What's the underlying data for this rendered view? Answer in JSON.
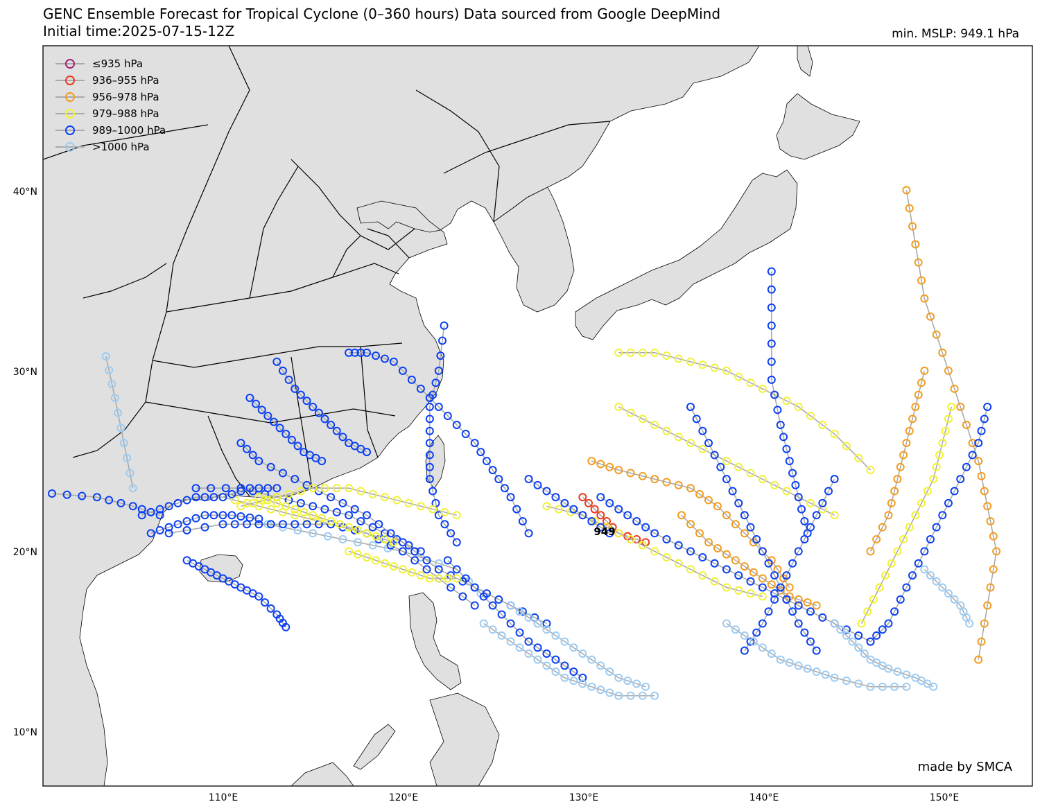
{
  "header": {
    "title_line1": "GENC Ensemble Forecast for Tropical Cyclone (0–360 hours) Data sourced from Google DeepMind",
    "title_line2": "Initial time:2025-07-15-12Z",
    "min_mslp": "min. MSLP: 949.1 hPa"
  },
  "map": {
    "lon_range": [
      100,
      155
    ],
    "lat_range": [
      7,
      48
    ],
    "lat_ticks": [
      "40°N",
      "30°N",
      "20°N",
      "10°N"
    ],
    "lon_ticks": [
      "110°E",
      "120°E",
      "130°E",
      "140°E",
      "150°E"
    ],
    "colors": {
      "land": "#e0e0e0",
      "ocean": "#ffffff",
      "track_line": "#aaaaaa"
    }
  },
  "legend": {
    "items": [
      {
        "label": "≤935 hPa",
        "color": "#a0206e"
      },
      {
        "label": "936–955 hPa",
        "color": "#e8391d"
      },
      {
        "label": "956–978 hPa",
        "color": "#f39c1f"
      },
      {
        "label": "979–988 hPa",
        "color": "#f2f230"
      },
      {
        "label": "989–1000 hPa",
        "color": "#0a3ff5"
      },
      {
        "label": ">1000 hPa",
        "color": "#9ccbf2"
      }
    ]
  },
  "annotation": {
    "min_label": "949"
  },
  "credit": "made by SMCA",
  "tracks": [
    {
      "cls": 5,
      "pts": [
        [
          112.5,
          21.5
        ],
        [
          115,
          21
        ],
        [
          117.5,
          20.5
        ],
        [
          120,
          20
        ],
        [
          123,
          19
        ],
        [
          125,
          17
        ]
      ]
    },
    {
      "cls": 4,
      "pts": [
        [
          122.5,
          19.5
        ],
        [
          124,
          18
        ],
        [
          125.5,
          16.5
        ],
        [
          127,
          15
        ],
        [
          128.5,
          14
        ],
        [
          130,
          13
        ]
      ]
    },
    {
      "cls": 5,
      "pts": [
        [
          124.5,
          16
        ],
        [
          126,
          15
        ],
        [
          127.5,
          14
        ],
        [
          129,
          13
        ],
        [
          130.5,
          12.5
        ],
        [
          132,
          12
        ],
        [
          134,
          12
        ]
      ]
    },
    {
      "cls": 4,
      "pts": [
        [
          121,
          20
        ],
        [
          119,
          21
        ],
        [
          117,
          22
        ],
        [
          115,
          22.5
        ],
        [
          113,
          23
        ],
        [
          111,
          23.5
        ],
        [
          108.5,
          23.5
        ]
      ]
    },
    {
      "cls": 3,
      "pts": [
        [
          118,
          21
        ],
        [
          116,
          21.5
        ],
        [
          114,
          22
        ],
        [
          112,
          22.5
        ],
        [
          110,
          23
        ]
      ]
    },
    {
      "cls": 4,
      "pts": [
        [
          124,
          17
        ],
        [
          122,
          18.5
        ],
        [
          120,
          20
        ],
        [
          118,
          21
        ],
        [
          116,
          21.5
        ],
        [
          114,
          21.5
        ],
        [
          112,
          21.5
        ],
        [
          110,
          21.5
        ],
        [
          107,
          21
        ]
      ]
    },
    {
      "cls": 4,
      "pts": [
        [
          128,
          16
        ],
        [
          126,
          17
        ],
        [
          124,
          18
        ],
        [
          122,
          19
        ],
        [
          120,
          20.5
        ],
        [
          118,
          22
        ],
        [
          116,
          23
        ],
        [
          114,
          24
        ],
        [
          112,
          25
        ],
        [
          111,
          26
        ]
      ]
    },
    {
      "cls": 4,
      "pts": [
        [
          123,
          20.5
        ],
        [
          122,
          22
        ],
        [
          121.5,
          24
        ],
        [
          121.5,
          26
        ],
        [
          121.5,
          28
        ],
        [
          122,
          30
        ],
        [
          122.3,
          32.5
        ]
      ]
    },
    {
      "cls": 4,
      "pts": [
        [
          127,
          21
        ],
        [
          126,
          23
        ],
        [
          125,
          24.5
        ],
        [
          124,
          26
        ],
        [
          122.5,
          27.5
        ],
        [
          121,
          29
        ],
        [
          119.5,
          30.5
        ],
        [
          118,
          31
        ],
        [
          117,
          31
        ]
      ]
    },
    {
      "cls": 3,
      "pts": [
        [
          123,
          22
        ],
        [
          121,
          22.5
        ],
        [
          119,
          23
        ],
        [
          117,
          23.5
        ],
        [
          115,
          23.5
        ],
        [
          113,
          23
        ],
        [
          111,
          22.5
        ]
      ]
    },
    {
      "cls": 1,
      "pts": [
        [
          130,
          23
        ],
        [
          131,
          22
        ],
        [
          132,
          21
        ],
        [
          133.5,
          20.5
        ]
      ]
    },
    {
      "cls": 2,
      "pts": [
        [
          135.5,
          22
        ],
        [
          137,
          20.5
        ],
        [
          138.5,
          19.5
        ],
        [
          140,
          18.5
        ],
        [
          141.5,
          17.5
        ],
        [
          143,
          17
        ]
      ]
    },
    {
      "cls": 2,
      "pts": [
        [
          130.5,
          25
        ],
        [
          132,
          24.5
        ],
        [
          134,
          24
        ],
        [
          136,
          23.5
        ],
        [
          137.5,
          22.5
        ],
        [
          139,
          21
        ],
        [
          140.5,
          19.5
        ],
        [
          141.5,
          18
        ]
      ]
    },
    {
      "cls": 2,
      "pts": [
        [
          146,
          20
        ],
        [
          147,
          22
        ],
        [
          147.5,
          24
        ],
        [
          148,
          26
        ],
        [
          148.5,
          28
        ],
        [
          149,
          30
        ]
      ]
    },
    {
      "cls": 2,
      "pts": [
        [
          152,
          14
        ],
        [
          152.5,
          17
        ],
        [
          153,
          20
        ],
        [
          152.5,
          22.5
        ],
        [
          152,
          25
        ],
        [
          151,
          28
        ],
        [
          150,
          31
        ],
        [
          149,
          34
        ],
        [
          148.5,
          37
        ],
        [
          148,
          40
        ]
      ]
    },
    {
      "cls": 3,
      "pts": [
        [
          145.5,
          16
        ],
        [
          146.5,
          18
        ],
        [
          147.5,
          20
        ],
        [
          148.5,
          22
        ],
        [
          149.5,
          24
        ],
        [
          150,
          26
        ],
        [
          150.5,
          28
        ]
      ]
    },
    {
      "cls": 3,
      "pts": [
        [
          132,
          31
        ],
        [
          134,
          31
        ],
        [
          136,
          30.5
        ],
        [
          138,
          30
        ],
        [
          140,
          29
        ],
        [
          142,
          28
        ],
        [
          144,
          26.5
        ],
        [
          146,
          24.5
        ]
      ]
    },
    {
      "cls": 3,
      "pts": [
        [
          132,
          28
        ],
        [
          134,
          27
        ],
        [
          136,
          26
        ],
        [
          138,
          25
        ],
        [
          140,
          24
        ],
        [
          142,
          23
        ],
        [
          144,
          22
        ]
      ]
    },
    {
      "cls": 3,
      "pts": [
        [
          128,
          22.5
        ],
        [
          130,
          22
        ],
        [
          132,
          21
        ],
        [
          134,
          20
        ],
        [
          136,
          19
        ],
        [
          138,
          18
        ],
        [
          140,
          17.5
        ]
      ]
    },
    {
      "cls": 4,
      "pts": [
        [
          140.5,
          35.5
        ],
        [
          140.5,
          32.5
        ],
        [
          140.5,
          29.5
        ],
        [
          141,
          27
        ],
        [
          141.5,
          25
        ],
        [
          142,
          23
        ],
        [
          142.5,
          21
        ]
      ]
    },
    {
      "cls": 4,
      "pts": [
        [
          131,
          23
        ],
        [
          132.5,
          22
        ],
        [
          134,
          21
        ],
        [
          136,
          20
        ],
        [
          138,
          19
        ],
        [
          140,
          18
        ],
        [
          142,
          17
        ],
        [
          144,
          16
        ],
        [
          146,
          15
        ]
      ]
    },
    {
      "cls": 4,
      "pts": [
        [
          136,
          28
        ],
        [
          137,
          26
        ],
        [
          138,
          24
        ],
        [
          139,
          22
        ],
        [
          140,
          20
        ],
        [
          141,
          18
        ],
        [
          142,
          16
        ],
        [
          143,
          14.5
        ]
      ]
    },
    {
      "cls": 4,
      "pts": [
        [
          152.5,
          28
        ],
        [
          152,
          26
        ],
        [
          151,
          24
        ],
        [
          150,
          22
        ],
        [
          149,
          20
        ],
        [
          148,
          18
        ],
        [
          147,
          16
        ],
        [
          146,
          15
        ]
      ]
    },
    {
      "cls": 4,
      "pts": [
        [
          144,
          24
        ],
        [
          143,
          22
        ],
        [
          142,
          20
        ],
        [
          141,
          18
        ],
        [
          140,
          16
        ],
        [
          139,
          14.5
        ]
      ]
    },
    {
      "cls": 4,
      "pts": [
        [
          127,
          24
        ],
        [
          128.5,
          23
        ],
        [
          130,
          22
        ],
        [
          131.5,
          21
        ]
      ]
    },
    {
      "cls": 5,
      "pts": [
        [
          138,
          16
        ],
        [
          139.5,
          15
        ],
        [
          141,
          14
        ],
        [
          142.5,
          13.5
        ],
        [
          144,
          13
        ],
        [
          146,
          12.5
        ],
        [
          148,
          12.5
        ]
      ]
    },
    {
      "cls": 5,
      "pts": [
        [
          144,
          16
        ],
        [
          145,
          15
        ],
        [
          146,
          14
        ],
        [
          147,
          13.5
        ],
        [
          148.5,
          13
        ],
        [
          149.5,
          12.5
        ]
      ]
    },
    {
      "cls": 5,
      "pts": [
        [
          151.5,
          16
        ],
        [
          151,
          17
        ],
        [
          150,
          18
        ],
        [
          149,
          19
        ]
      ]
    },
    {
      "cls": 5,
      "pts": [
        [
          126,
          17
        ],
        [
          127.5,
          16
        ],
        [
          129,
          15
        ],
        [
          130.5,
          14
        ],
        [
          132,
          13
        ],
        [
          133.5,
          12.5
        ]
      ]
    },
    {
      "cls": 4,
      "pts": [
        [
          106,
          21
        ],
        [
          107.5,
          21.5
        ],
        [
          109,
          22
        ],
        [
          110.5,
          22
        ],
        [
          112,
          21.8
        ]
      ]
    },
    {
      "cls": 4,
      "pts": [
        [
          105.5,
          22
        ],
        [
          107,
          22.5
        ],
        [
          108.5,
          23
        ],
        [
          110,
          23
        ],
        [
          111.5,
          23.5
        ],
        [
          113,
          23.5
        ]
      ]
    },
    {
      "cls": 4,
      "pts": [
        [
          108,
          19.5
        ],
        [
          109,
          19
        ],
        [
          110,
          18.5
        ],
        [
          111,
          18
        ],
        [
          112,
          17.5
        ],
        [
          113,
          16.5
        ],
        [
          113.5,
          15.8
        ]
      ]
    },
    {
      "cls": 3,
      "pts": [
        [
          117,
          20
        ],
        [
          118.5,
          19.5
        ],
        [
          120,
          19
        ],
        [
          121.5,
          18.5
        ],
        [
          123,
          18.5
        ]
      ]
    },
    {
      "cls": 5,
      "pts": [
        [
          103.5,
          30.8
        ],
        [
          104,
          28.5
        ],
        [
          104.5,
          26
        ],
        [
          105,
          23.5
        ]
      ]
    },
    {
      "cls": 4,
      "pts": [
        [
          100.5,
          23.2
        ],
        [
          103,
          23
        ],
        [
          105,
          22.5
        ],
        [
          106.5,
          22
        ]
      ]
    },
    {
      "cls": 3,
      "pts": [
        [
          112,
          23
        ],
        [
          113.5,
          22.5
        ],
        [
          115,
          22
        ],
        [
          116.5,
          21.5
        ],
        [
          118,
          21
        ],
        [
          119.5,
          20.5
        ]
      ]
    },
    {
      "cls": 4,
      "pts": [
        [
          113,
          30.5
        ],
        [
          114,
          29
        ],
        [
          115,
          28
        ],
        [
          116,
          27
        ],
        [
          117,
          26
        ],
        [
          118,
          25.5
        ]
      ]
    },
    {
      "cls": 4,
      "pts": [
        [
          111.5,
          28.5
        ],
        [
          112.5,
          27.5
        ],
        [
          113.5,
          26.5
        ],
        [
          114.5,
          25.5
        ],
        [
          115.5,
          25
        ]
      ]
    }
  ]
}
